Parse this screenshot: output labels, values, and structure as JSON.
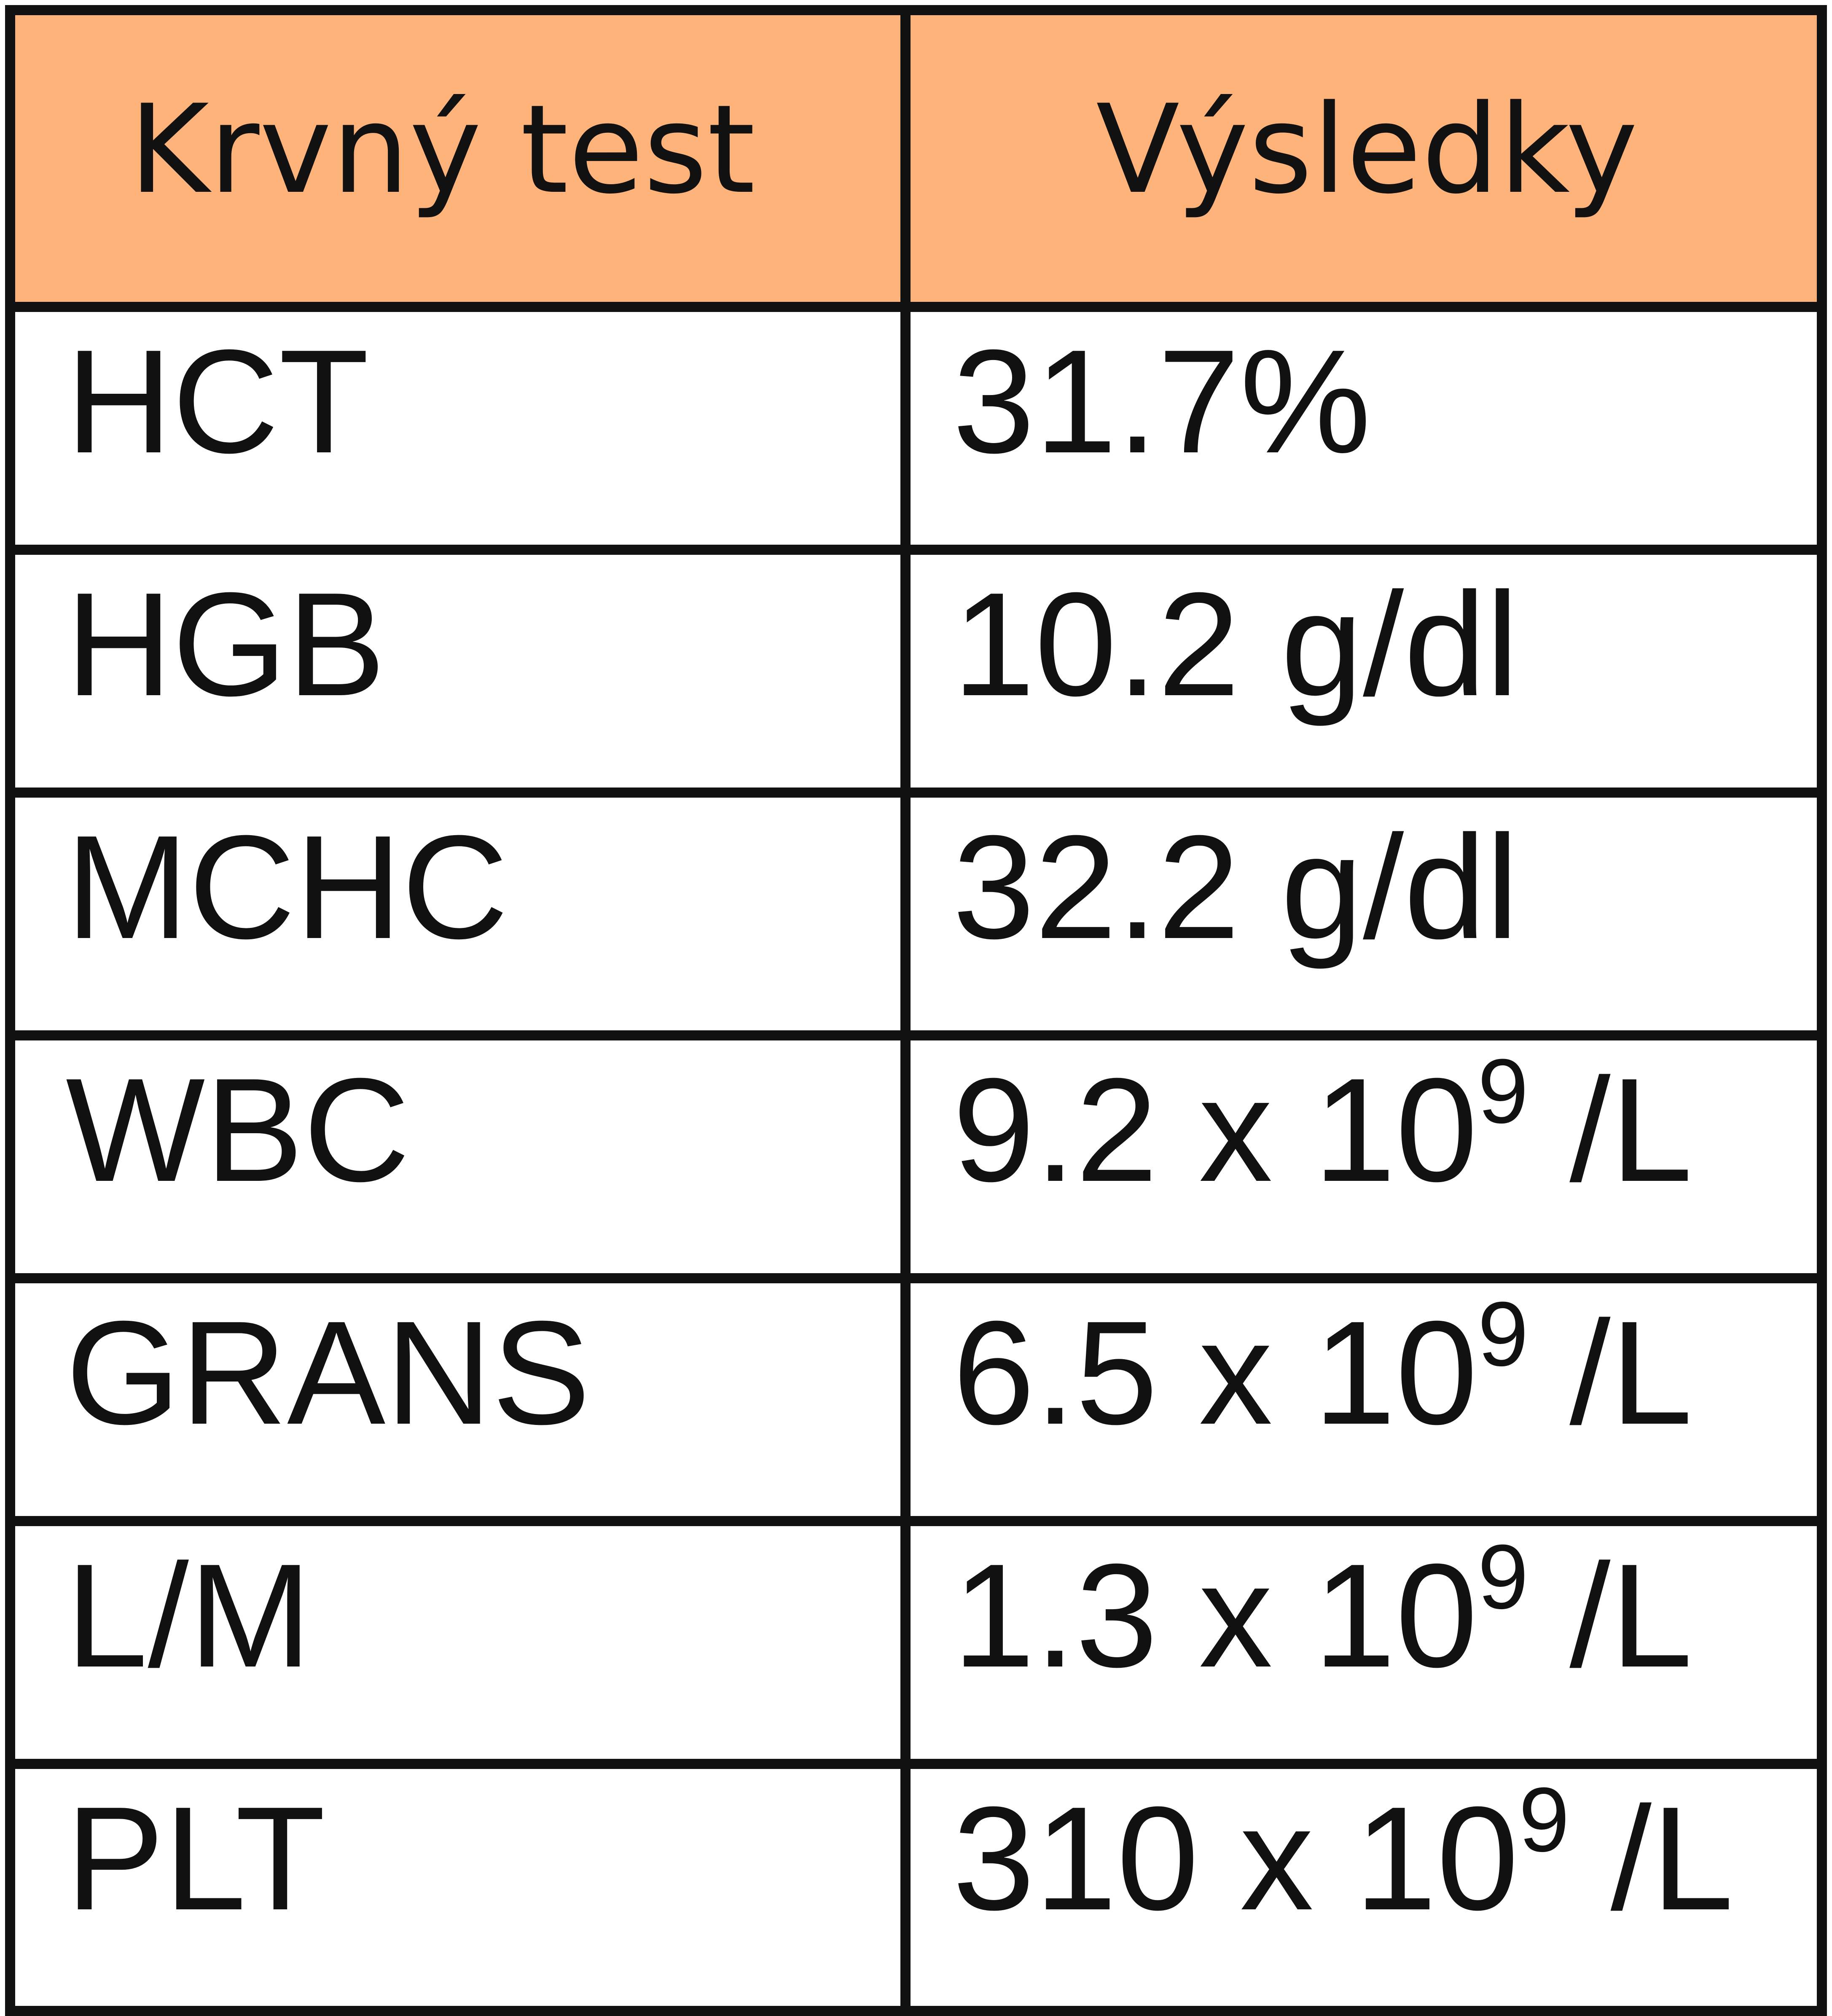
{
  "table": {
    "header": [
      "Krvný test",
      "Výsledky"
    ],
    "rows": [
      {
        "test": "HCT",
        "result": [
          "31.7%"
        ]
      },
      {
        "test": "HGB",
        "result": [
          "10.2 g/dl"
        ]
      },
      {
        "test": "MCHC",
        "result": [
          "32.2 g/dl"
        ]
      },
      {
        "test": "WBC",
        "result": [
          "9.2 x 10",
          "9",
          " /L"
        ]
      },
      {
        "test": "GRANS",
        "result": [
          "6.5 x 10",
          "9",
          " /L"
        ]
      },
      {
        "test": "L/M",
        "result": [
          "1.3 x 10",
          "9",
          " /L"
        ]
      },
      {
        "test": "PLT",
        "result": [
          "310 x 10",
          "9",
          " /L"
        ]
      }
    ]
  }
}
